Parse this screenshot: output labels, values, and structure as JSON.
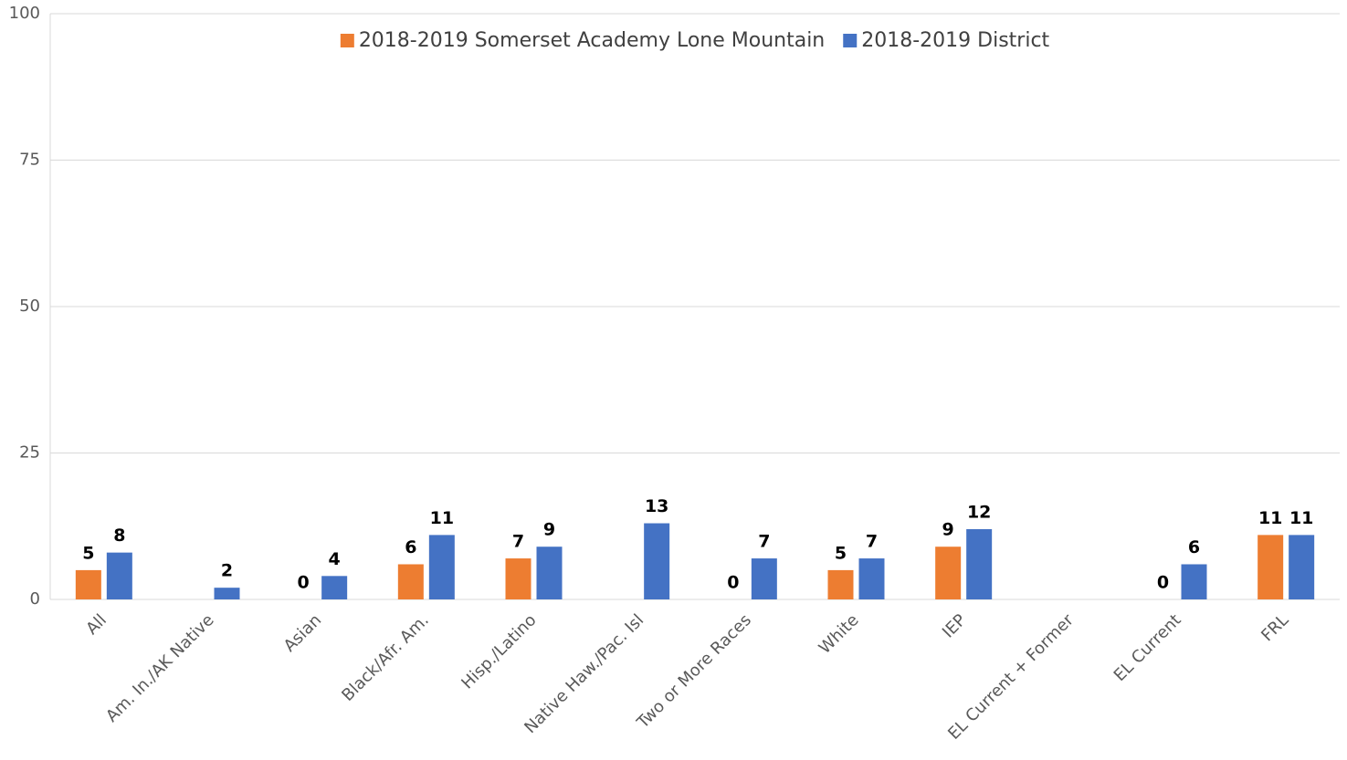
{
  "chart_data": {
    "type": "bar",
    "categories": [
      "All",
      "Am. In./AK Native",
      "Asian",
      "Black/Afr. Am.",
      "Hisp./Latino",
      "Native Haw./Pac. Isl",
      "Two or More Races",
      "White",
      "IEP",
      "EL Current + Former",
      "EL Current",
      "FRL"
    ],
    "series": [
      {
        "name": "2018-2019 Somerset Academy Lone Mountain",
        "color": "#ed7d31",
        "values": [
          5,
          null,
          0,
          6,
          7,
          null,
          0,
          5,
          9,
          null,
          0,
          11
        ]
      },
      {
        "name": "2018-2019 District",
        "color": "#4472c4",
        "values": [
          8,
          2,
          4,
          11,
          9,
          13,
          7,
          7,
          12,
          null,
          6,
          11
        ]
      }
    ],
    "ylim": [
      0,
      100
    ],
    "yticks": [
      0,
      25,
      50,
      75,
      100
    ],
    "grid": true,
    "legend": "top"
  }
}
